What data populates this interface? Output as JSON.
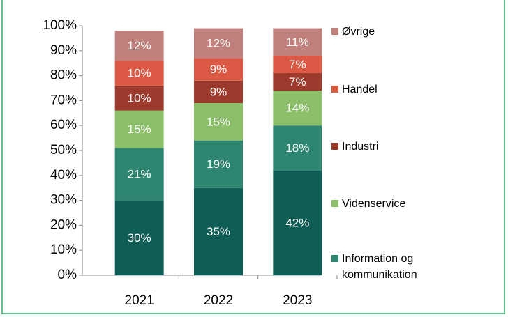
{
  "chart_data": {
    "type": "stacked-bar",
    "categories": [
      "2021",
      "2022",
      "2023"
    ],
    "series": [
      {
        "color": "#0e5e55",
        "values": [
          30,
          35,
          42
        ],
        "value_labels": [
          "30%",
          "35%",
          "42%"
        ]
      },
      {
        "name": "Information og kommunikation",
        "color": "#2e8670",
        "values": [
          21,
          19,
          18
        ],
        "value_labels": [
          "21%",
          "19%",
          "18%"
        ]
      },
      {
        "name": "Videnservice",
        "color": "#8cbf6a",
        "values": [
          15,
          15,
          14
        ],
        "value_labels": [
          "15%",
          "15%",
          "14%"
        ]
      },
      {
        "name": "Industri",
        "color": "#9c3a2e",
        "values": [
          10,
          9,
          7
        ],
        "value_labels": [
          "10%",
          "9%",
          "7%"
        ]
      },
      {
        "name": "Handel",
        "color": "#dc5a45",
        "values": [
          10,
          9,
          7
        ],
        "value_labels": [
          "10%",
          "9%",
          "7%"
        ]
      },
      {
        "name": "Øvrige",
        "color": "#c0807c",
        "values": [
          12,
          12,
          11
        ],
        "value_labels": [
          "12%",
          "12%",
          "11%"
        ]
      }
    ],
    "ylim": [
      0,
      100
    ],
    "yticks": [
      {
        "value": 0,
        "label": "0%"
      },
      {
        "value": 10,
        "label": "10%"
      },
      {
        "value": 20,
        "label": "20%"
      },
      {
        "value": 30,
        "label": "30%"
      },
      {
        "value": 40,
        "label": "40%"
      },
      {
        "value": 50,
        "label": "50%"
      },
      {
        "value": 60,
        "label": "60%"
      },
      {
        "value": 70,
        "label": "70%"
      },
      {
        "value": 80,
        "label": "80%"
      },
      {
        "value": 90,
        "label": "90%"
      },
      {
        "value": 100,
        "label": "100%"
      }
    ],
    "legend": "right"
  }
}
